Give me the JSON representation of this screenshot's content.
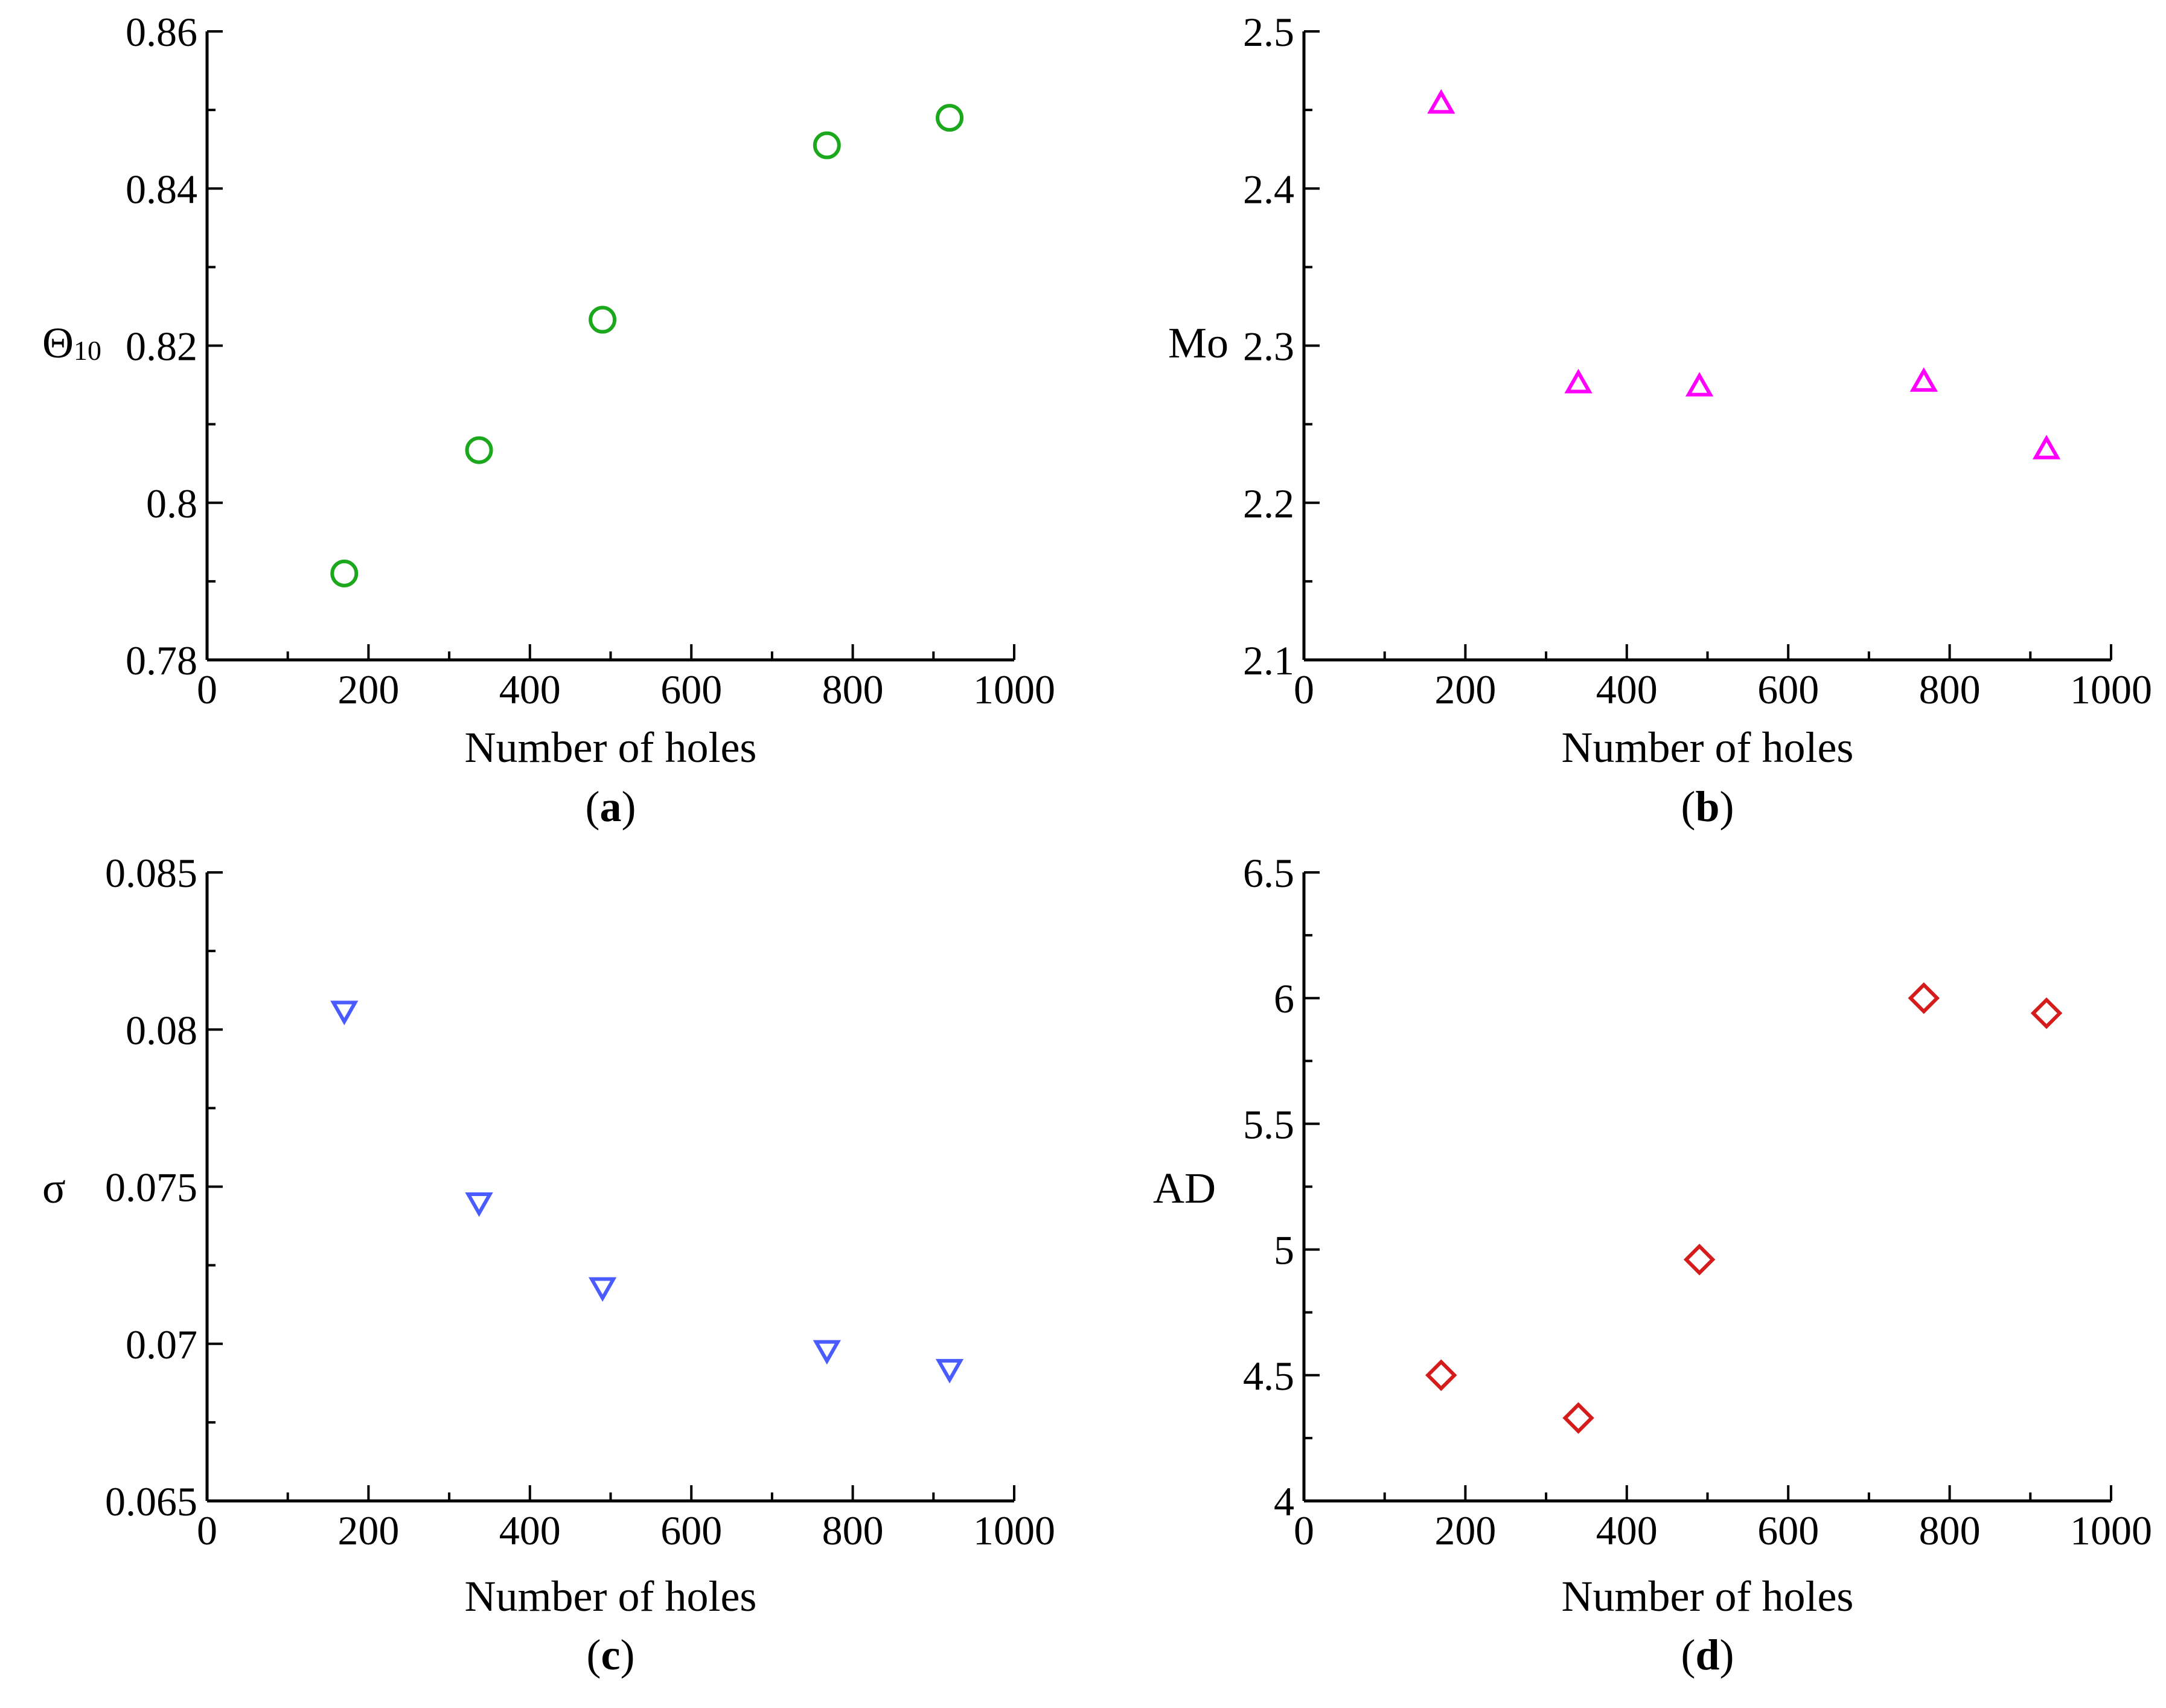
{
  "colors": {
    "panel_a": "#1ca81c",
    "panel_b": "#ff00ff",
    "panel_c": "#4a5cff",
    "panel_d": "#d41c1c"
  },
  "chart_data": [
    {
      "type": "scatter",
      "panel": "a",
      "caption_letter": "a",
      "xlabel": "Number of holes",
      "ylabel": "Θ",
      "ylabel_sub": "10",
      "xlim": [
        0,
        1000
      ],
      "ylim": [
        0.78,
        0.86
      ],
      "x_ticks": [
        "0",
        "200",
        "400",
        "600",
        "800",
        "1000"
      ],
      "y_ticks": [
        "0.78",
        "0.8",
        "0.82",
        "0.84",
        "0.86"
      ],
      "marker": "circle",
      "x": [
        170,
        337,
        490,
        768,
        920
      ],
      "y": [
        0.791,
        0.8067,
        0.8233,
        0.8455,
        0.849
      ]
    },
    {
      "type": "scatter",
      "panel": "b",
      "caption_letter": "b",
      "xlabel": "Number of holes",
      "ylabel": "Mo",
      "ylabel_sub": "",
      "xlim": [
        0,
        1000
      ],
      "ylim": [
        2.1,
        2.5
      ],
      "x_ticks": [
        "0",
        "200",
        "400",
        "600",
        "800",
        "1000"
      ],
      "y_ticks": [
        "2.1",
        "2.2",
        "2.3",
        "2.4",
        "2.5"
      ],
      "marker": "triangle-up",
      "x": [
        170,
        340,
        490,
        768,
        920
      ],
      "y": [
        2.454,
        2.276,
        2.274,
        2.277,
        2.234
      ]
    },
    {
      "type": "scatter",
      "panel": "c",
      "caption_letter": "c",
      "xlabel": "Number of holes",
      "ylabel": "σ",
      "ylabel_sub": "",
      "xlim": [
        0,
        1000
      ],
      "ylim": [
        0.065,
        0.085
      ],
      "x_ticks": [
        "0",
        "200",
        "400",
        "600",
        "800",
        "1000"
      ],
      "y_ticks": [
        "0.065",
        "0.07",
        "0.075",
        "0.08",
        "0.085"
      ],
      "marker": "triangle-down",
      "x": [
        170,
        337,
        490,
        768,
        920
      ],
      "y": [
        0.0806,
        0.0745,
        0.0718,
        0.0698,
        0.0692
      ]
    },
    {
      "type": "scatter",
      "panel": "d",
      "caption_letter": "d",
      "xlabel": "Number of holes",
      "ylabel": "AD",
      "ylabel_sub": "",
      "xlim": [
        0,
        1000
      ],
      "ylim": [
        4,
        6.5
      ],
      "x_ticks": [
        "0",
        "200",
        "400",
        "600",
        "800",
        "1000"
      ],
      "y_ticks": [
        "4",
        "4.5",
        "5",
        "5.5",
        "6",
        "6.5"
      ],
      "marker": "diamond",
      "x": [
        170,
        340,
        490,
        768,
        920
      ],
      "y": [
        4.5,
        4.33,
        4.96,
        6.0,
        5.94
      ]
    }
  ]
}
